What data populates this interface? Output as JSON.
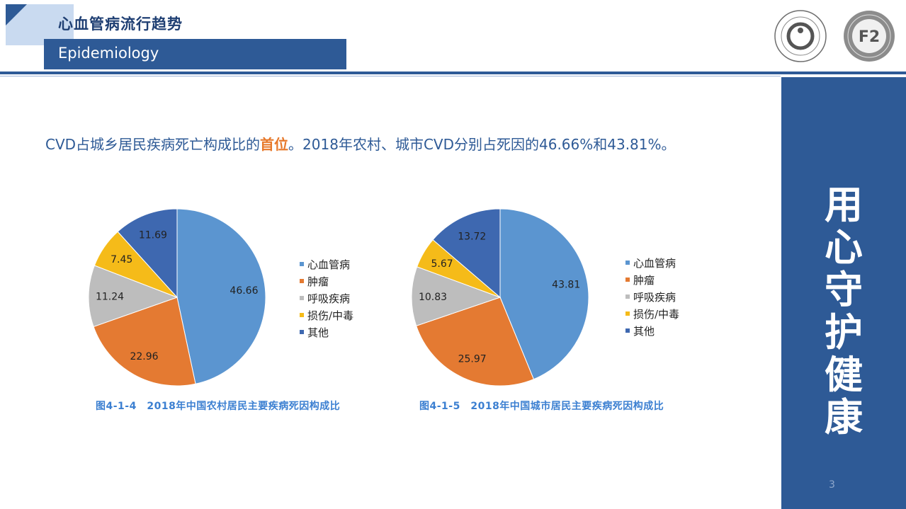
{
  "header": {
    "title_cn": "心血管病流行趋势",
    "title_en": "Epidemiology"
  },
  "logos": {
    "left_icon": "national-center-cardiovascular-seal",
    "right_icon": "fuwai-hospital-seal",
    "right_text": "F2"
  },
  "headline": {
    "part1": "CVD占城乡居民疾病死亡构成比的",
    "highlight": "首位",
    "part2": "。2018年农村、城市CVD分别占死因的46.66%和43.81%。"
  },
  "side_panel": {
    "slogan": [
      "用",
      "心",
      "守",
      "护",
      "健",
      "康"
    ],
    "page_number": "3"
  },
  "colors": {
    "primary_blue": "#2e5a96",
    "accent_orange": "#e7792b",
    "caption_blue": "#3b7fd1"
  },
  "chart_data": [
    {
      "type": "pie",
      "title": "",
      "caption": "图4-1-4　2018年中国农村居民主要疾病死因构成比",
      "categories": [
        "心血管病",
        "肿瘤",
        "呼吸疾病",
        "损伤/中毒",
        "其他"
      ],
      "values": [
        46.66,
        22.96,
        11.24,
        7.45,
        11.69
      ],
      "value_labels": [
        "46.66",
        "22.96",
        "11.24",
        "7.45",
        "11.69"
      ],
      "colors": [
        "#5b95d0",
        "#e47a32",
        "#bdbdbd",
        "#f5bb19",
        "#3e68b0"
      ],
      "legend_position": "right"
    },
    {
      "type": "pie",
      "title": "",
      "caption": "图4-1-5　2018年中国城市居民主要疾病死因构成比",
      "categories": [
        "心血管病",
        "肿瘤",
        "呼吸疾病",
        "损伤/中毒",
        "其他"
      ],
      "values": [
        43.81,
        25.97,
        10.83,
        5.67,
        13.72
      ],
      "value_labels": [
        "43.81",
        "25.97",
        "10.83",
        "5.67",
        "13.72"
      ],
      "colors": [
        "#5b95d0",
        "#e47a32",
        "#bdbdbd",
        "#f5bb19",
        "#3e68b0"
      ],
      "legend_position": "right"
    }
  ]
}
